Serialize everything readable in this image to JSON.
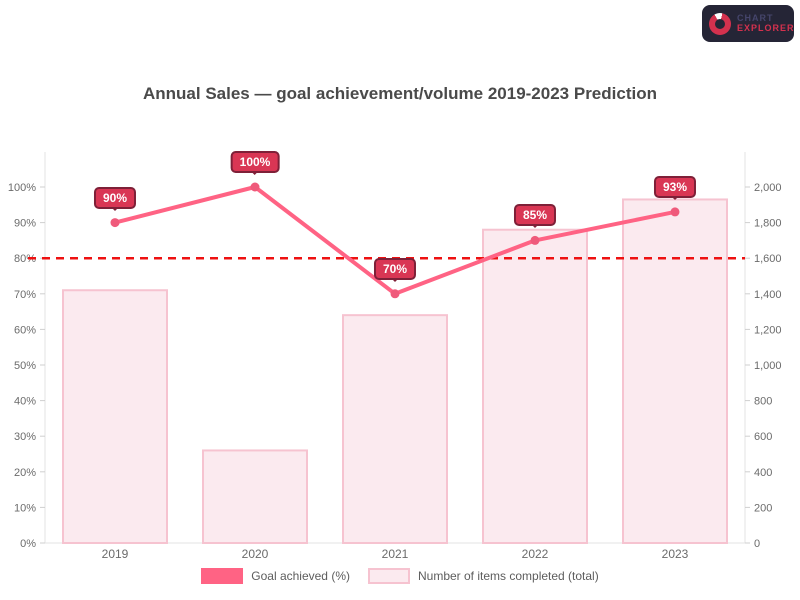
{
  "title": "Annual Sales — goal achievement/volume 2019-2023 Prediction",
  "logo": {
    "icon": "donut-chart-icon",
    "line1": "CHART",
    "line2": "EXPLORER"
  },
  "colors": {
    "accent_line": "#ff6384",
    "point_fill": "#ef5a7b",
    "bar_fill": "#fbeaef",
    "bar_border": "#f6c3d0",
    "badge_bg": "#d93654",
    "badge_border": "#7e2038",
    "threshold": "#ee1111",
    "title_text": "#4a4a4a",
    "axis_text": "#6b6b6b",
    "axis_line": "#e3e3e3",
    "badge_dark": "#252536",
    "logo_red": "#d4314e"
  },
  "chart_data": {
    "type": "bar",
    "subtype": "combo-bar-line",
    "title": "Annual Sales — goal achievement/volume 2019-2023 Prediction",
    "categories": [
      "2019",
      "2020",
      "2021",
      "2022",
      "2023"
    ],
    "series": [
      {
        "name": "Goal achieved (%)",
        "type": "line",
        "axis": "left",
        "values": [
          90,
          100,
          70,
          85,
          93
        ],
        "point_labels": [
          "90%",
          "100%",
          "70%",
          "85%",
          "93%"
        ]
      },
      {
        "name": "Number of items completed (total)",
        "type": "bar",
        "axis": "right",
        "values": [
          1420,
          520,
          1280,
          1760,
          1930
        ]
      }
    ],
    "y_left": {
      "min": 0,
      "max": 100,
      "step": 10,
      "ticks": [
        "100%",
        "90%",
        "80%",
        "70%",
        "60%",
        "50%",
        "40%",
        "30%",
        "20%",
        "10%",
        "0%"
      ]
    },
    "y_right": {
      "min": 0,
      "max": 2000,
      "step": 200,
      "ticks": [
        "2,000",
        "1,800",
        "1,600",
        "1,400",
        "1,200",
        "1,000",
        "800",
        "600",
        "400",
        "200",
        "0"
      ]
    },
    "threshold_line": {
      "axis": "left",
      "value": 80,
      "style": "dashed"
    },
    "grid": "off",
    "legend_position": "bottom"
  },
  "legend": {
    "items": [
      {
        "label": "Goal achieved (%)"
      },
      {
        "label": "Number of items completed (total)"
      }
    ]
  }
}
